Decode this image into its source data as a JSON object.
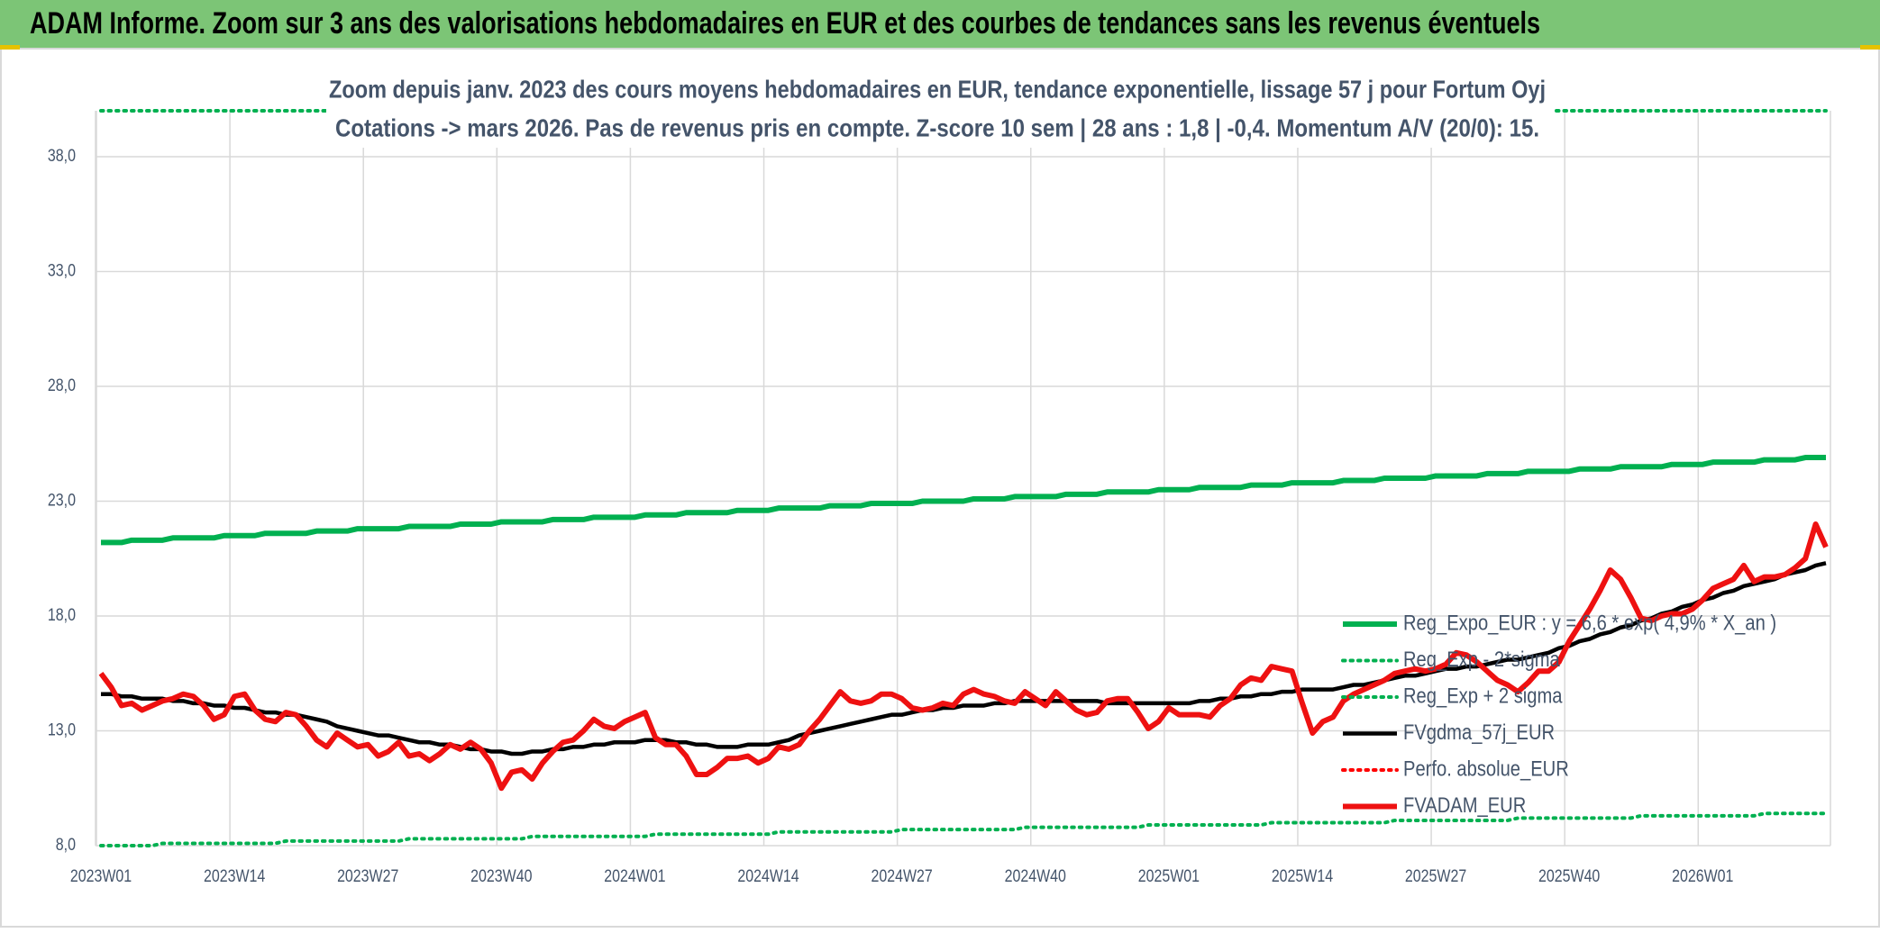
{
  "header": {
    "title": "ADAM Informe. Zoom sur 3 ans des valorisations hebdomadaires en EUR et des courbes de tendances sans les revenus éventuels"
  },
  "chart_data": {
    "type": "line",
    "title": "Zoom depuis janv. 2023 des cours moyens hebdomadaires en EUR, tendance exponentielle, lissage 57 j pour Fortum Oyj",
    "subtitle": "Cotations -> mars 2026. Pas de revenus pris en compte. Z-score 10 sem | 28 ans : 1,8 | -0,4. Momentum A/V (20/0): 15.",
    "categories": [
      "2023W01",
      null,
      null,
      null,
      null,
      null,
      null,
      null,
      null,
      null,
      null,
      null,
      null,
      "2023W14",
      null,
      null,
      null,
      null,
      null,
      null,
      null,
      null,
      null,
      null,
      null,
      null,
      "2023W27",
      null,
      null,
      null,
      null,
      null,
      null,
      null,
      null,
      null,
      null,
      null,
      null,
      "2023W40",
      null,
      null,
      null,
      null,
      null,
      null,
      null,
      null,
      null,
      null,
      null,
      null,
      "2024W01",
      null,
      null,
      null,
      null,
      null,
      null,
      null,
      null,
      null,
      null,
      null,
      null,
      "2024W14",
      null,
      null,
      null,
      null,
      null,
      null,
      null,
      null,
      null,
      null,
      null,
      null,
      "2024W27",
      null,
      null,
      null,
      null,
      null,
      null,
      null,
      null,
      null,
      null,
      null,
      null,
      "2024W40",
      null,
      null,
      null,
      null,
      null,
      null,
      null,
      null,
      null,
      null,
      null,
      null,
      "2025W01",
      null,
      null,
      null,
      null,
      null,
      null,
      null,
      null,
      null,
      null,
      null,
      null,
      "2025W14",
      null,
      null,
      null,
      null,
      null,
      null,
      null,
      null,
      null,
      null,
      null,
      null,
      "2025W27",
      null,
      null,
      null,
      null,
      null,
      null,
      null,
      null,
      null,
      null,
      null,
      null,
      "2025W40",
      null,
      null,
      null,
      null,
      null,
      null,
      null,
      null,
      null,
      null,
      null,
      null,
      "2026W01",
      null,
      null,
      null,
      null,
      null,
      null,
      null,
      null,
      null,
      null,
      null,
      null
    ],
    "series": [
      {
        "name": "Reg_Expo_EUR : y = 6,6 * exp( 4,9% *  X_an )",
        "color": "#00b050",
        "style": "solid",
        "values": [
          21.2,
          21.2,
          21.2,
          21.3,
          21.3,
          21.3,
          21.3,
          21.4,
          21.4,
          21.4,
          21.4,
          21.4,
          21.5,
          21.5,
          21.5,
          21.5,
          21.6,
          21.6,
          21.6,
          21.6,
          21.6,
          21.7,
          21.7,
          21.7,
          21.7,
          21.8,
          21.8,
          21.8,
          21.8,
          21.8,
          21.9,
          21.9,
          21.9,
          21.9,
          21.9,
          22.0,
          22.0,
          22.0,
          22.0,
          22.1,
          22.1,
          22.1,
          22.1,
          22.1,
          22.2,
          22.2,
          22.2,
          22.2,
          22.3,
          22.3,
          22.3,
          22.3,
          22.3,
          22.4,
          22.4,
          22.4,
          22.4,
          22.5,
          22.5,
          22.5,
          22.5,
          22.5,
          22.6,
          22.6,
          22.6,
          22.6,
          22.7,
          22.7,
          22.7,
          22.7,
          22.7,
          22.8,
          22.8,
          22.8,
          22.8,
          22.9,
          22.9,
          22.9,
          22.9,
          22.9,
          23.0,
          23.0,
          23.0,
          23.0,
          23.0,
          23.1,
          23.1,
          23.1,
          23.1,
          23.2,
          23.2,
          23.2,
          23.2,
          23.2,
          23.3,
          23.3,
          23.3,
          23.3,
          23.4,
          23.4,
          23.4,
          23.4,
          23.4,
          23.5,
          23.5,
          23.5,
          23.5,
          23.6,
          23.6,
          23.6,
          23.6,
          23.6,
          23.7,
          23.7,
          23.7,
          23.7,
          23.8,
          23.8,
          23.8,
          23.8,
          23.8,
          23.9,
          23.9,
          23.9,
          23.9,
          24.0,
          24.0,
          24.0,
          24.0,
          24.0,
          24.1,
          24.1,
          24.1,
          24.1,
          24.1,
          24.2,
          24.2,
          24.2,
          24.2,
          24.3,
          24.3,
          24.3,
          24.3,
          24.3,
          24.4,
          24.4,
          24.4,
          24.4,
          24.5,
          24.5,
          24.5,
          24.5,
          24.5,
          24.6,
          24.6,
          24.6,
          24.6,
          24.7,
          24.7,
          24.7,
          24.7,
          24.7,
          24.8,
          24.8,
          24.8,
          24.8,
          24.9,
          24.9,
          24.9
        ]
      },
      {
        "name": "Reg_Exp - 2*sigma",
        "color": "#00b050",
        "style": "dotted",
        "values": [
          8.0,
          8.0,
          8.0,
          8.0,
          8.0,
          8.0,
          8.1,
          8.1,
          8.1,
          8.1,
          8.1,
          8.1,
          8.1,
          8.1,
          8.1,
          8.1,
          8.1,
          8.1,
          8.2,
          8.2,
          8.2,
          8.2,
          8.2,
          8.2,
          8.2,
          8.2,
          8.2,
          8.2,
          8.2,
          8.2,
          8.3,
          8.3,
          8.3,
          8.3,
          8.3,
          8.3,
          8.3,
          8.3,
          8.3,
          8.3,
          8.3,
          8.3,
          8.4,
          8.4,
          8.4,
          8.4,
          8.4,
          8.4,
          8.4,
          8.4,
          8.4,
          8.4,
          8.4,
          8.4,
          8.5,
          8.5,
          8.5,
          8.5,
          8.5,
          8.5,
          8.5,
          8.5,
          8.5,
          8.5,
          8.5,
          8.5,
          8.6,
          8.6,
          8.6,
          8.6,
          8.6,
          8.6,
          8.6,
          8.6,
          8.6,
          8.6,
          8.6,
          8.6,
          8.7,
          8.7,
          8.7,
          8.7,
          8.7,
          8.7,
          8.7,
          8.7,
          8.7,
          8.7,
          8.7,
          8.7,
          8.8,
          8.8,
          8.8,
          8.8,
          8.8,
          8.8,
          8.8,
          8.8,
          8.8,
          8.8,
          8.8,
          8.8,
          8.9,
          8.9,
          8.9,
          8.9,
          8.9,
          8.9,
          8.9,
          8.9,
          8.9,
          8.9,
          8.9,
          8.9,
          9.0,
          9.0,
          9.0,
          9.0,
          9.0,
          9.0,
          9.0,
          9.0,
          9.0,
          9.0,
          9.0,
          9.0,
          9.1,
          9.1,
          9.1,
          9.1,
          9.1,
          9.1,
          9.1,
          9.1,
          9.1,
          9.1,
          9.1,
          9.1,
          9.2,
          9.2,
          9.2,
          9.2,
          9.2,
          9.2,
          9.2,
          9.2,
          9.2,
          9.2,
          9.2,
          9.2,
          9.3,
          9.3,
          9.3,
          9.3,
          9.3,
          9.3,
          9.3,
          9.3,
          9.3,
          9.3,
          9.3,
          9.3,
          9.4,
          9.4,
          9.4,
          9.4,
          9.4,
          9.4,
          9.4
        ]
      },
      {
        "name": "Reg_Exp + 2 sigma",
        "color": "#00b050",
        "style": "dotted",
        "values": [
          40,
          40,
          40,
          40,
          40,
          40,
          40,
          40,
          40,
          40,
          40,
          40,
          40,
          40,
          40,
          40,
          40,
          40,
          40,
          40,
          40,
          40,
          40,
          40,
          40,
          40,
          40,
          40,
          40,
          40,
          40,
          40,
          40,
          40,
          40,
          40,
          40,
          40,
          40,
          40,
          40,
          40,
          40,
          40,
          40,
          40,
          40,
          40,
          40,
          40,
          40,
          40,
          40,
          40,
          40,
          40,
          40,
          40,
          40,
          40,
          40,
          40,
          40,
          40,
          40,
          40,
          40,
          40,
          40,
          40,
          40,
          40,
          40,
          40,
          40,
          40,
          40,
          40,
          40,
          40,
          40,
          40,
          40,
          40,
          40,
          40,
          40,
          40,
          40,
          40,
          40,
          40,
          40,
          40,
          40,
          40,
          40,
          40,
          40,
          40,
          40,
          40,
          40,
          40,
          40,
          40,
          40,
          40,
          40,
          40,
          40,
          40,
          40,
          40,
          40,
          40,
          40,
          40,
          40,
          40,
          40,
          40,
          40,
          40,
          40,
          40,
          40,
          40,
          40,
          40,
          40,
          40,
          40,
          40,
          40,
          40,
          40,
          40,
          40,
          40,
          40,
          40,
          40,
          40,
          40,
          40,
          40,
          40,
          40,
          40,
          40,
          40,
          40,
          40,
          40,
          40,
          40,
          40,
          40,
          40,
          40,
          40,
          40,
          40,
          40,
          40,
          40,
          40,
          40
        ]
      },
      {
        "name": "FVgdma_57j_EUR",
        "color": "#000000",
        "style": "solid",
        "values": [
          14.6,
          14.6,
          14.5,
          14.5,
          14.4,
          14.4,
          14.4,
          14.3,
          14.3,
          14.2,
          14.2,
          14.1,
          14.1,
          14.0,
          14.0,
          13.9,
          13.8,
          13.8,
          13.7,
          13.7,
          13.6,
          13.5,
          13.4,
          13.2,
          13.1,
          13.0,
          12.9,
          12.8,
          12.8,
          12.7,
          12.6,
          12.5,
          12.5,
          12.4,
          12.4,
          12.3,
          12.2,
          12.2,
          12.1,
          12.1,
          12.0,
          12.0,
          12.1,
          12.1,
          12.2,
          12.2,
          12.3,
          12.3,
          12.4,
          12.4,
          12.5,
          12.5,
          12.5,
          12.6,
          12.6,
          12.6,
          12.5,
          12.5,
          12.4,
          12.4,
          12.3,
          12.3,
          12.3,
          12.4,
          12.4,
          12.4,
          12.5,
          12.6,
          12.8,
          12.9,
          13.0,
          13.1,
          13.2,
          13.3,
          13.4,
          13.5,
          13.6,
          13.7,
          13.7,
          13.8,
          13.9,
          13.9,
          14.0,
          14.0,
          14.1,
          14.1,
          14.1,
          14.2,
          14.2,
          14.3,
          14.3,
          14.3,
          14.3,
          14.3,
          14.3,
          14.3,
          14.3,
          14.3,
          14.2,
          14.2,
          14.2,
          14.2,
          14.2,
          14.2,
          14.2,
          14.2,
          14.2,
          14.3,
          14.3,
          14.4,
          14.4,
          14.5,
          14.5,
          14.6,
          14.6,
          14.7,
          14.7,
          14.8,
          14.8,
          14.8,
          14.8,
          14.9,
          15.0,
          15.0,
          15.1,
          15.2,
          15.3,
          15.4,
          15.4,
          15.5,
          15.6,
          15.7,
          15.7,
          15.8,
          15.8,
          15.9,
          16.0,
          16.1,
          16.1,
          16.2,
          16.3,
          16.4,
          16.6,
          16.7,
          16.9,
          17.0,
          17.2,
          17.3,
          17.5,
          17.6,
          17.8,
          17.9,
          18.1,
          18.2,
          18.4,
          18.5,
          18.7,
          18.8,
          19.0,
          19.1,
          19.3,
          19.4,
          19.5,
          19.6,
          19.8,
          19.9,
          20.0,
          20.2,
          20.3
        ]
      },
      {
        "name": "Perfo. absolue_EUR",
        "color": "#ff0000",
        "style": "dotted"
      },
      {
        "name": "FVADAM_EUR",
        "color": "#ee1111",
        "style": "solid",
        "values": [
          15.5,
          14.9,
          14.1,
          14.2,
          13.9,
          14.1,
          14.3,
          14.4,
          14.6,
          14.5,
          14.1,
          13.5,
          13.7,
          14.5,
          14.6,
          13.9,
          13.5,
          13.4,
          13.8,
          13.7,
          13.2,
          12.6,
          12.3,
          12.9,
          12.6,
          12.3,
          12.4,
          11.9,
          12.1,
          12.5,
          11.9,
          12.0,
          11.7,
          12.0,
          12.4,
          12.2,
          12.5,
          12.2,
          11.6,
          10.5,
          11.2,
          11.3,
          10.9,
          11.6,
          12.1,
          12.5,
          12.6,
          13.0,
          13.5,
          13.2,
          13.1,
          13.4,
          13.6,
          13.8,
          12.7,
          12.4,
          12.4,
          11.9,
          11.1,
          11.1,
          11.4,
          11.8,
          11.8,
          11.9,
          11.6,
          11.8,
          12.3,
          12.2,
          12.4,
          13.0,
          13.5,
          14.1,
          14.7,
          14.3,
          14.2,
          14.3,
          14.6,
          14.6,
          14.4,
          14.0,
          13.9,
          14.0,
          14.2,
          14.1,
          14.6,
          14.8,
          14.6,
          14.5,
          14.3,
          14.2,
          14.7,
          14.4,
          14.1,
          14.7,
          14.3,
          13.9,
          13.7,
          13.8,
          14.3,
          14.4,
          14.4,
          13.8,
          13.1,
          13.4,
          14.0,
          13.7,
          13.7,
          13.7,
          13.6,
          14.1,
          14.4,
          15.0,
          15.3,
          15.2,
          15.8,
          15.7,
          15.6,
          14.2,
          12.9,
          13.4,
          13.6,
          14.3,
          14.6,
          14.8,
          15.0,
          15.2,
          15.5,
          15.6,
          15.7,
          15.6,
          15.7,
          15.9,
          16.4,
          16.3,
          16.0,
          15.6,
          15.2,
          15.0,
          14.7,
          15.1,
          15.6,
          15.6,
          16.0,
          16.9,
          17.6,
          18.3,
          19.1,
          20.0,
          19.6,
          18.8,
          17.9,
          17.8,
          18.0,
          18.1,
          18.1,
          18.3,
          18.7,
          19.2,
          19.4,
          19.6,
          20.2,
          19.5,
          19.7,
          19.7,
          19.8,
          20.1,
          20.5,
          22.0,
          21.0
        ]
      }
    ],
    "ylim": [
      8,
      40
    ],
    "yticks": [
      {
        "value": 8,
        "label": "8,0"
      },
      {
        "value": 13,
        "label": "13,0"
      },
      {
        "value": 18,
        "label": "18,0"
      },
      {
        "value": 23,
        "label": "23,0"
      },
      {
        "value": 28,
        "label": "28,0"
      },
      {
        "value": 33,
        "label": "33,0"
      },
      {
        "value": 38,
        "label": "38,0"
      }
    ],
    "grid": true,
    "legend": "lower-right"
  }
}
